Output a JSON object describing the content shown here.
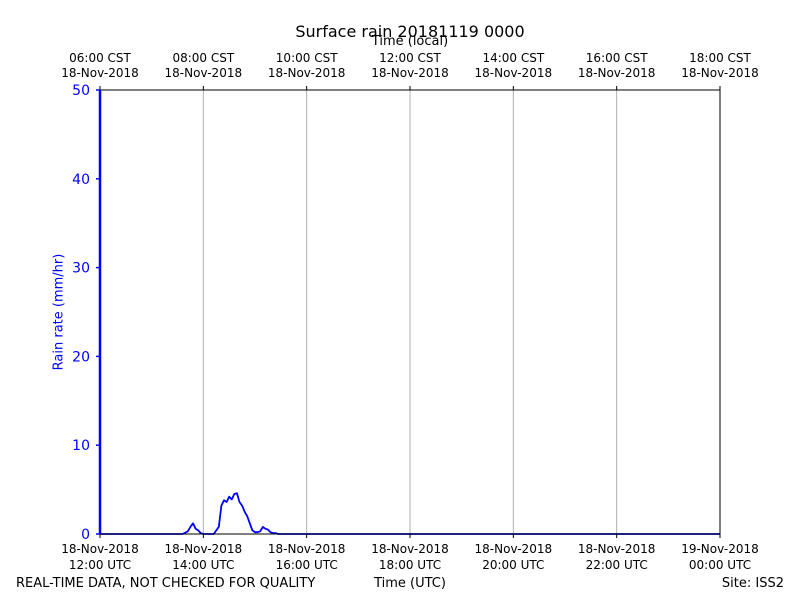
{
  "chart_data": {
    "type": "line",
    "title": "Surface rain 20181119 0000",
    "xlabel": "Time (UTC)",
    "xlabel_top": "Time (local)",
    "ylabel": "Rain rate (mm/hr)",
    "ylim": [
      0,
      50
    ],
    "yticks": [
      0,
      10,
      20,
      30,
      40,
      50
    ],
    "xlim_hours_utc": [
      12,
      24
    ],
    "grid": "vertical",
    "color": "#0000ff",
    "bottom_ticks": [
      {
        "line1": "18-Nov-2018",
        "line2": "12:00 UTC"
      },
      {
        "line1": "18-Nov-2018",
        "line2": "14:00 UTC"
      },
      {
        "line1": "18-Nov-2018",
        "line2": "16:00 UTC"
      },
      {
        "line1": "18-Nov-2018",
        "line2": "18:00 UTC"
      },
      {
        "line1": "18-Nov-2018",
        "line2": "20:00 UTC"
      },
      {
        "line1": "18-Nov-2018",
        "line2": "22:00 UTC"
      },
      {
        "line1": "19-Nov-2018",
        "line2": "00:00 UTC"
      }
    ],
    "top_ticks": [
      {
        "line1": "06:00 CST",
        "line2": "18-Nov-2018"
      },
      {
        "line1": "08:00 CST",
        "line2": "18-Nov-2018"
      },
      {
        "line1": "10:00 CST",
        "line2": "18-Nov-2018"
      },
      {
        "line1": "12:00 CST",
        "line2": "18-Nov-2018"
      },
      {
        "line1": "14:00 CST",
        "line2": "18-Nov-2018"
      },
      {
        "line1": "16:00 CST",
        "line2": "18-Nov-2018"
      },
      {
        "line1": "18:00 CST",
        "line2": "18-Nov-2018"
      }
    ],
    "series": [
      {
        "x": [
          12.0,
          13.6,
          13.7,
          13.75,
          13.8,
          13.85,
          13.9,
          13.95,
          14.0,
          14.2,
          14.3,
          14.35,
          14.4,
          14.45,
          14.5,
          14.55,
          14.6,
          14.65,
          14.7,
          14.75,
          14.8,
          14.85,
          14.9,
          14.95,
          15.0,
          15.05,
          15.1,
          15.15,
          15.2,
          15.25,
          15.3,
          15.35,
          15.4,
          15.45,
          15.5,
          15.6,
          16.0,
          24.0
        ],
        "y": [
          0,
          0,
          0.3,
          0.8,
          1.2,
          0.6,
          0.4,
          0.1,
          0,
          0,
          0.8,
          3.2,
          3.8,
          3.6,
          4.2,
          3.9,
          4.5,
          4.6,
          3.6,
          3.2,
          2.5,
          2.0,
          1.2,
          0.4,
          0.2,
          0.2,
          0.3,
          0.8,
          0.6,
          0.5,
          0.2,
          0.1,
          0.1,
          0,
          0,
          0,
          0,
          0
        ]
      }
    ]
  },
  "footer": {
    "left": "REAL-TIME DATA, NOT CHECKED FOR QUALITY",
    "right": "Site: ISS2"
  }
}
